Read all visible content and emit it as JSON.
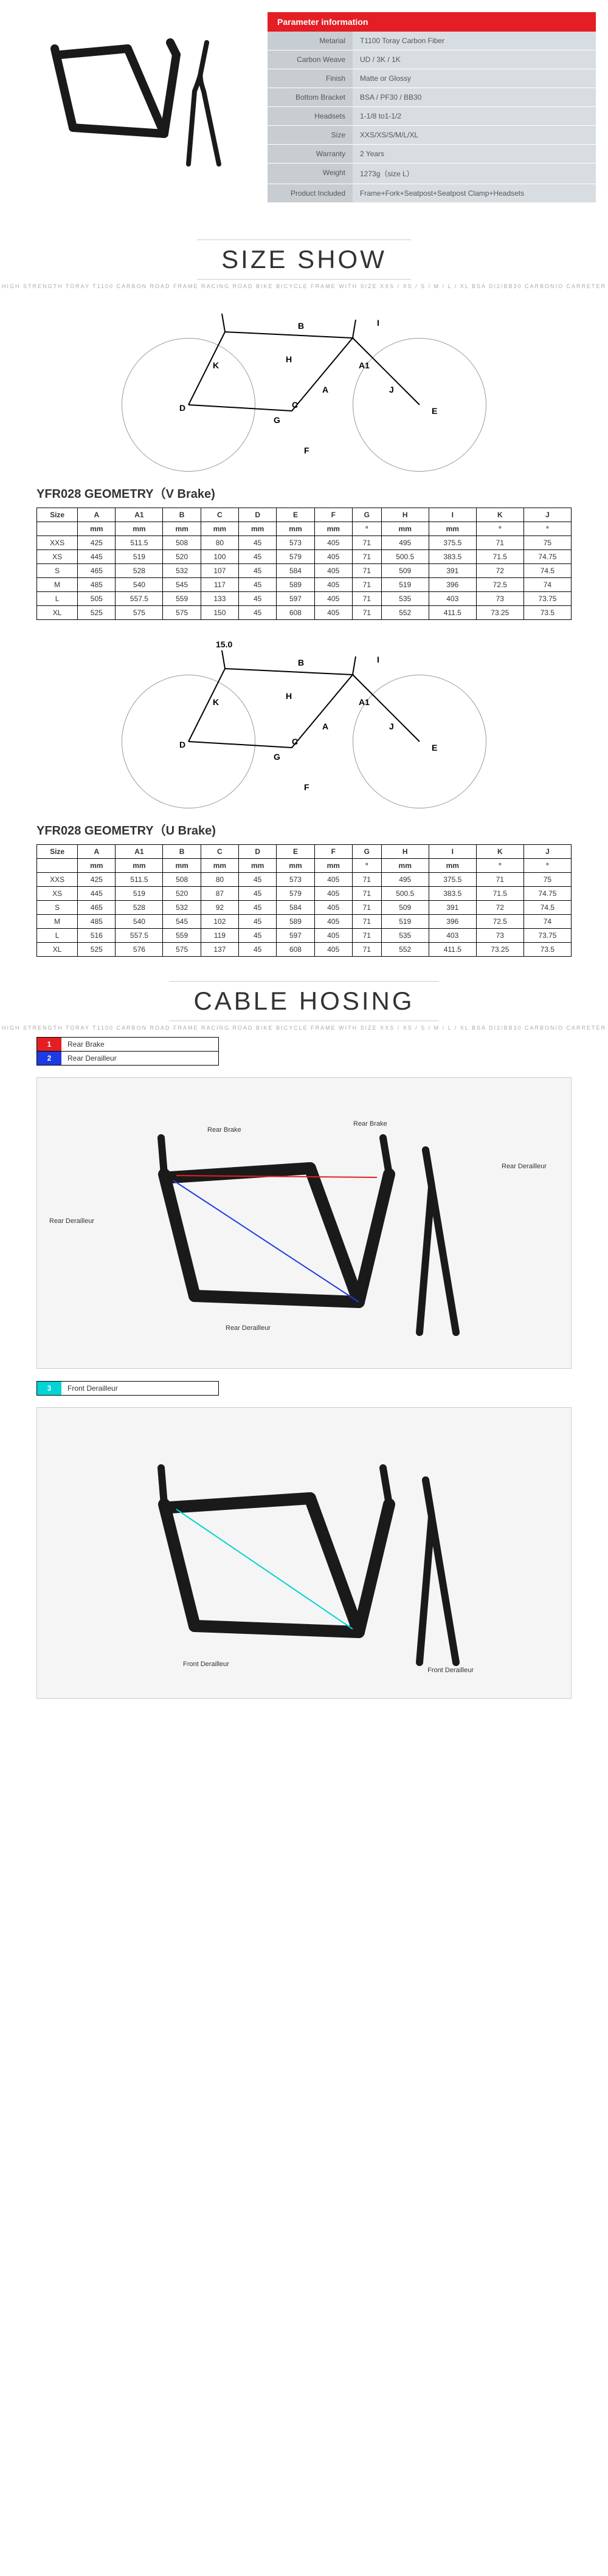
{
  "param": {
    "header": "Parameter information",
    "rows": [
      {
        "label": "Metarial",
        "value": "T1100 Toray Carbon Fiber"
      },
      {
        "label": "Carbon Weave",
        "value": "UD / 3K / 1K"
      },
      {
        "label": "Finish",
        "value": "Matte or Glossy"
      },
      {
        "label": "Bottom Bracket",
        "value": "BSA / PF30 / BB30"
      },
      {
        "label": "Headsets",
        "value": "1-1/8 to1-1/2"
      },
      {
        "label": "Size",
        "value": "XXS/XS/S/M/L/XL"
      },
      {
        "label": "Warranty",
        "value": "2 Years"
      },
      {
        "label": "Weight",
        "value": "1273g（size L）"
      },
      {
        "label": "Product Included",
        "value": "Frame+Fork+Seatpost+Seatpost Clamp+Headsets"
      }
    ]
  },
  "sizeShow": {
    "title": "SIZE  SHOW",
    "sub": "HIGH STRENGTH TORAY T1100 CARBON ROAD FRAME RACING ROAD BIKE BICYCLE FRAME WITH SIZE XXS / XS / S / M / L / XL BSA DI2/BB30 CARBONIO CARRETER"
  },
  "geomV": {
    "title": "YFR028 GEOMETRY（V Brake)",
    "headers": [
      "Size",
      "A",
      "A1",
      "B",
      "C",
      "D",
      "E",
      "F",
      "G",
      "H",
      "I",
      "K",
      "J"
    ],
    "unitRow": [
      "",
      "mm",
      "mm",
      "mm",
      "mm",
      "mm",
      "mm",
      "mm",
      "°",
      "mm",
      "mm",
      "°",
      "°"
    ],
    "rows": [
      [
        "XXS",
        "425",
        "511.5",
        "508",
        "80",
        "45",
        "573",
        "405",
        "71",
        "495",
        "375.5",
        "71",
        "75"
      ],
      [
        "XS",
        "445",
        "519",
        "520",
        "100",
        "45",
        "579",
        "405",
        "71",
        "500.5",
        "383.5",
        "71.5",
        "74.75"
      ],
      [
        "S",
        "465",
        "528",
        "532",
        "107",
        "45",
        "584",
        "405",
        "71",
        "509",
        "391",
        "72",
        "74.5"
      ],
      [
        "M",
        "485",
        "540",
        "545",
        "117",
        "45",
        "589",
        "405",
        "71",
        "519",
        "396",
        "72.5",
        "74"
      ],
      [
        "L",
        "505",
        "557.5",
        "559",
        "133",
        "45",
        "597",
        "405",
        "71",
        "535",
        "403",
        "73",
        "73.75"
      ],
      [
        "XL",
        "525",
        "575",
        "575",
        "150",
        "45",
        "608",
        "405",
        "71",
        "552",
        "411.5",
        "73.25",
        "73.5"
      ]
    ]
  },
  "geomU": {
    "title": "YFR028 GEOMETRY（U Brake)",
    "headers": [
      "Size",
      "A",
      "A1",
      "B",
      "C",
      "D",
      "E",
      "F",
      "G",
      "H",
      "I",
      "K",
      "J"
    ],
    "unitRow": [
      "",
      "mm",
      "mm",
      "mm",
      "mm",
      "mm",
      "mm",
      "mm",
      "°",
      "mm",
      "mm",
      "°",
      "°"
    ],
    "rows": [
      [
        "XXS",
        "425",
        "511.5",
        "508",
        "80",
        "45",
        "573",
        "405",
        "71",
        "495",
        "375.5",
        "71",
        "75"
      ],
      [
        "XS",
        "445",
        "519",
        "520",
        "87",
        "45",
        "579",
        "405",
        "71",
        "500.5",
        "383.5",
        "71.5",
        "74.75"
      ],
      [
        "S",
        "465",
        "528",
        "532",
        "92",
        "45",
        "584",
        "405",
        "71",
        "509",
        "391",
        "72",
        "74.5"
      ],
      [
        "M",
        "485",
        "540",
        "545",
        "102",
        "45",
        "589",
        "405",
        "71",
        "519",
        "396",
        "72.5",
        "74"
      ],
      [
        "L",
        "516",
        "557.5",
        "559",
        "119",
        "45",
        "597",
        "405",
        "71",
        "535",
        "403",
        "73",
        "73.75"
      ],
      [
        "XL",
        "525",
        "576",
        "575",
        "137",
        "45",
        "608",
        "405",
        "71",
        "552",
        "411.5",
        "73.25",
        "73.5"
      ]
    ]
  },
  "cableHosing": {
    "title": "CABLE HOSING",
    "sub": "HIGH STRENGTH TORAY T1100 CARBON ROAD FRAME RACING ROAD BIKE BICYCLE FRAME WITH SIZE XXS / XS / S / M / L / XL BSA DI2/BB30 CARBONIO CARRETER",
    "legend1": [
      {
        "num": "1",
        "color": "red",
        "label": "Rear Brake"
      },
      {
        "num": "2",
        "color": "blue",
        "label": "Rear Derailleur"
      }
    ],
    "legend2": [
      {
        "num": "3",
        "color": "cyan",
        "label": "Front Derailleur"
      }
    ],
    "callouts1": [
      "Rear Brake",
      "Rear Brake",
      "Rear Derailleur",
      "Rear Derailleur",
      "Rear Derailleur"
    ],
    "callouts2": [
      "Front Derailleur",
      "Front Derailleur"
    ]
  },
  "diagramLabel": "15.0",
  "colors": {
    "red": "#e31e24",
    "blue": "#1e3ae3",
    "cyan": "#00d4d4",
    "paramBg": "#d8dde2"
  }
}
